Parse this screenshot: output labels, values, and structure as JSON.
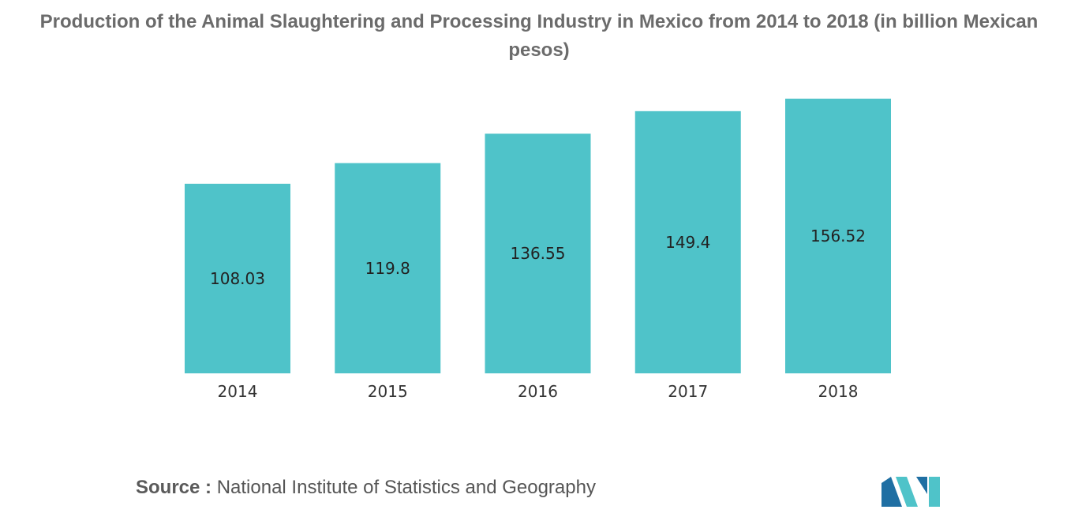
{
  "chart_data": {
    "type": "bar",
    "title": "Production of the Animal Slaughtering and Processing Industry in Mexico from 2014 to 2018 (in billion Mexican pesos)",
    "categories": [
      "2014",
      "2015",
      "2016",
      "2017",
      "2018"
    ],
    "values": [
      108.03,
      119.8,
      136.55,
      149.4,
      156.52
    ],
    "value_labels": [
      "108.03",
      "119.8",
      "136.55",
      "149.4",
      "156.52"
    ],
    "xlabel": "",
    "ylabel": "",
    "ylim": [
      0,
      156.52
    ],
    "grid": false,
    "legend": "none",
    "bar_color": "#4fc3c9"
  },
  "source": {
    "prefix": "Source :",
    "text": " National Institute of Statistics and Geography"
  },
  "logo": {
    "icon": "mordor-intelligence-logo-icon",
    "colors": [
      "#1f6fa3",
      "#4fc3c9"
    ]
  }
}
